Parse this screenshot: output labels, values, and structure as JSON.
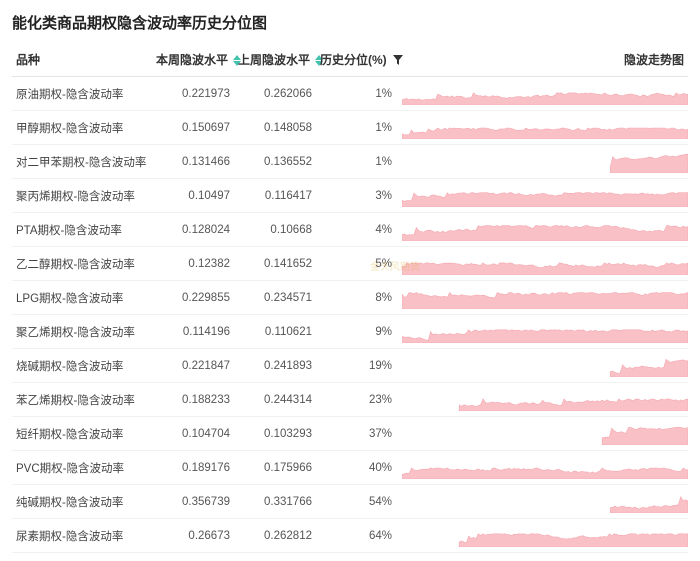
{
  "title": "能化类商品期权隐含波动率历史分位图",
  "watermark": "金天风期货",
  "columns": {
    "name": "品种",
    "thisWeek": "本周隐波水平",
    "lastWeek": "上周隐波水平",
    "pct": "历史分位(%)",
    "spark": "隐波走势图"
  },
  "style": {
    "sort_arrow_color": "#47c2b0",
    "filter_icon_color": "#333333",
    "spark_fill": "#f9c0c6",
    "spark_stroke": "#f5a8b0",
    "border_color": "#e5e5e5",
    "row_border_color": "#f2f2f2",
    "title_fontsize": 15,
    "cell_fontsize": 11.5,
    "spark_width": 280,
    "spark_height": 22,
    "spark_points": 120
  },
  "rows": [
    {
      "name": "原油期权-隐含波动率",
      "thisWeek": "0.221973",
      "lastWeek": "0.262066",
      "pct": "1%",
      "fill": 1.0,
      "startFrac": 0.0,
      "base": 0.25,
      "peak": 0.55,
      "seed": 11
    },
    {
      "name": "甲醇期权-隐含波动率",
      "thisWeek": "0.150697",
      "lastWeek": "0.148058",
      "pct": "1%",
      "fill": 1.0,
      "startFrac": 0.0,
      "base": 0.22,
      "peak": 0.5,
      "seed": 22
    },
    {
      "name": "对二甲苯期权-隐含波动率",
      "thisWeek": "0.131466",
      "lastWeek": "0.136552",
      "pct": "1%",
      "fill": 0.27,
      "startFrac": 0.73,
      "base": 0.3,
      "peak": 0.85,
      "seed": 33
    },
    {
      "name": "聚丙烯期权-隐含波动率",
      "thisWeek": "0.10497",
      "lastWeek": "0.116417",
      "pct": "3%",
      "fill": 1.0,
      "startFrac": 0.0,
      "base": 0.28,
      "peak": 0.65,
      "seed": 44
    },
    {
      "name": "PTA期权-隐含波动率",
      "thisWeek": "0.128024",
      "lastWeek": "0.10668",
      "pct": "4%",
      "fill": 1.0,
      "startFrac": 0.0,
      "base": 0.3,
      "peak": 0.7,
      "seed": 55
    },
    {
      "name": "乙二醇期权-隐含波动率",
      "thisWeek": "0.12382",
      "lastWeek": "0.141652",
      "pct": "5%",
      "fill": 1.0,
      "startFrac": 0.0,
      "base": 0.24,
      "peak": 0.55,
      "seed": 66
    },
    {
      "name": "LPG期权-隐含波动率",
      "thisWeek": "0.229855",
      "lastWeek": "0.234571",
      "pct": "8%",
      "fill": 1.0,
      "startFrac": 0.0,
      "base": 0.3,
      "peak": 0.75,
      "seed": 77
    },
    {
      "name": "聚乙烯期权-隐含波动率",
      "thisWeek": "0.114196",
      "lastWeek": "0.110621",
      "pct": "9%",
      "fill": 1.0,
      "startFrac": 0.0,
      "base": 0.26,
      "peak": 0.6,
      "seed": 88
    },
    {
      "name": "烧碱期权-隐含波动率",
      "thisWeek": "0.221847",
      "lastWeek": "0.241893",
      "pct": "19%",
      "fill": 0.27,
      "startFrac": 0.73,
      "base": 0.28,
      "peak": 0.8,
      "seed": 99
    },
    {
      "name": "苯乙烯期权-隐含波动率",
      "thisWeek": "0.188233",
      "lastWeek": "0.244314",
      "pct": "23%",
      "fill": 0.8,
      "startFrac": 0.2,
      "base": 0.22,
      "peak": 0.55,
      "seed": 111
    },
    {
      "name": "短纤期权-隐含波动率",
      "thisWeek": "0.104704",
      "lastWeek": "0.103293",
      "pct": "37%",
      "fill": 0.3,
      "startFrac": 0.7,
      "base": 0.3,
      "peak": 0.8,
      "seed": 122
    },
    {
      "name": "PVC期权-隐含波动率",
      "thisWeek": "0.189176",
      "lastWeek": "0.175966",
      "pct": "40%",
      "fill": 1.0,
      "startFrac": 0.0,
      "base": 0.2,
      "peak": 0.5,
      "seed": 133
    },
    {
      "name": "纯碱期权-隐含波动率",
      "thisWeek": "0.356739",
      "lastWeek": "0.331766",
      "pct": "54%",
      "fill": 0.27,
      "startFrac": 0.73,
      "base": 0.3,
      "peak": 0.8,
      "seed": 144
    },
    {
      "name": "尿素期权-隐含波动率",
      "thisWeek": "0.26673",
      "lastWeek": "0.262812",
      "pct": "64%",
      "fill": 0.8,
      "startFrac": 0.2,
      "base": 0.24,
      "peak": 0.6,
      "seed": 155
    }
  ]
}
